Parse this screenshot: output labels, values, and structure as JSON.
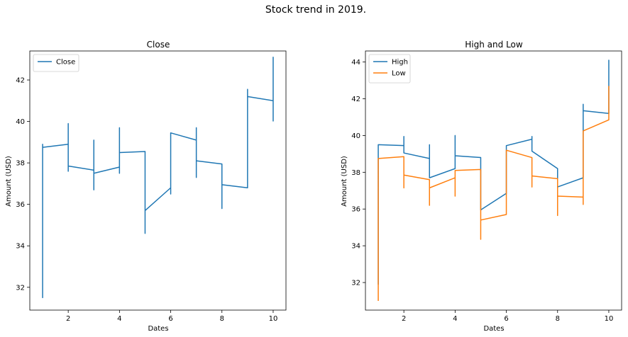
{
  "suptitle": "Stock trend in 2019.",
  "chart_data": [
    {
      "type": "line",
      "title": "Close",
      "xlabel": "Dates",
      "ylabel": "Amount (USD)",
      "xlim": [
        0.5,
        10.5
      ],
      "ylim": [
        30.9,
        43.4
      ],
      "xticks": [
        2,
        4,
        6,
        8,
        10
      ],
      "yticks": [
        32,
        34,
        36,
        38,
        40,
        42
      ],
      "legend": "upper-left",
      "series": [
        {
          "name": "Close",
          "color": "#1f77b4",
          "x": [
            1,
            1,
            1,
            1,
            2,
            2,
            2,
            2,
            3,
            3,
            3,
            3,
            4,
            4,
            4,
            4,
            5,
            5,
            5,
            6,
            6,
            6,
            7,
            7,
            7,
            7,
            8,
            8,
            8,
            9,
            9,
            9,
            10,
            10,
            10
          ],
          "y": [
            32.5,
            31.5,
            38.9,
            38.75,
            38.9,
            39.9,
            37.6,
            37.85,
            37.65,
            39.1,
            36.7,
            37.5,
            37.8,
            39.7,
            37.5,
            38.5,
            38.55,
            34.6,
            35.7,
            36.8,
            36.5,
            39.45,
            39.1,
            39.7,
            37.3,
            38.1,
            37.95,
            35.8,
            36.95,
            36.8,
            41.55,
            41.2,
            41.0,
            43.1,
            40.0
          ]
        }
      ]
    },
    {
      "type": "line",
      "title": "High and Low",
      "xlabel": "Dates",
      "ylabel": "Amount (USD)",
      "xlim": [
        0.5,
        10.5
      ],
      "ylim": [
        30.5,
        44.6
      ],
      "xticks": [
        2,
        4,
        6,
        8,
        10
      ],
      "yticks": [
        32,
        34,
        36,
        38,
        40,
        42,
        44
      ],
      "legend": "upper-left",
      "series": [
        {
          "name": "High",
          "color": "#1f77b4",
          "x": [
            1,
            1,
            1,
            2,
            2,
            2,
            3,
            3,
            3,
            4,
            4,
            4,
            5,
            5,
            6,
            6,
            7,
            7,
            7,
            8,
            8,
            9,
            9,
            9,
            10,
            10,
            10
          ],
          "y": [
            33.1,
            31.9,
            39.5,
            39.45,
            39.95,
            39.05,
            38.75,
            39.5,
            37.7,
            38.2,
            40.0,
            38.9,
            38.8,
            35.95,
            36.85,
            39.45,
            39.8,
            39.95,
            39.15,
            38.2,
            37.2,
            37.7,
            41.7,
            41.35,
            41.2,
            44.1,
            43.2
          ]
        },
        {
          "name": "Low",
          "color": "#ff7f0e",
          "x": [
            1,
            1,
            2,
            2,
            2,
            3,
            3,
            3,
            4,
            4,
            4,
            5,
            5,
            5,
            6,
            6,
            7,
            7,
            7,
            8,
            8,
            8,
            9,
            9,
            9,
            10,
            10
          ],
          "y": [
            31.0,
            38.75,
            38.85,
            37.15,
            37.85,
            37.6,
            36.2,
            37.15,
            37.7,
            36.7,
            38.1,
            38.15,
            34.35,
            35.4,
            35.7,
            39.2,
            38.8,
            37.2,
            37.8,
            37.65,
            35.65,
            36.7,
            36.65,
            36.25,
            40.25,
            40.85,
            42.7
          ]
        }
      ]
    }
  ]
}
